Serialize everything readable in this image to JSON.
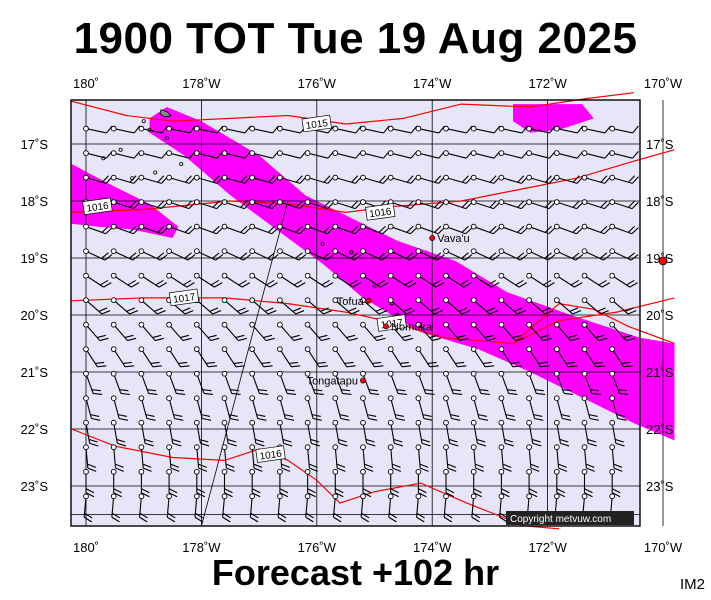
{
  "title": "1900 TOT Tue 19 Aug 2025",
  "footer": "Forecast +102 hr",
  "tag": "IM2",
  "copyright": "Copyright metvuw.com",
  "colors": {
    "ocean": "#e6e6f8",
    "rain": "#ff00ff",
    "isobar": "#ff0000",
    "land": "#000000"
  },
  "lon_labels": [
    "180˚",
    "178˚W",
    "176˚W",
    "174˚W",
    "172˚W",
    "170˚W"
  ],
  "lat_labels": [
    "17˚S",
    "18˚S",
    "19˚S",
    "20˚S",
    "21˚S",
    "22˚S",
    "23˚S"
  ],
  "places": [
    {
      "name": "Vava'u",
      "lon": -174.0,
      "lat": -18.65
    },
    {
      "name": "Tofua",
      "lon": -175.1,
      "lat": -19.75
    },
    {
      "name": "Nomuka",
      "lon": -174.8,
      "lat": -20.2
    },
    {
      "name": "Tongatapu",
      "lon": -175.2,
      "lat": -21.15
    }
  ],
  "isobar_labels": [
    {
      "text": "1015",
      "lon": -176.0,
      "lat": -16.65
    },
    {
      "text": "1016",
      "lon": -174.9,
      "lat": -18.2
    },
    {
      "text": "1016",
      "lon": -179.8,
      "lat": -18.1
    },
    {
      "text": "1017",
      "lon": -178.3,
      "lat": -19.7
    },
    {
      "text": "1017",
      "lon": -174.7,
      "lat": -20.15
    },
    {
      "text": "1016",
      "lon": -176.8,
      "lat": -22.45
    }
  ]
}
